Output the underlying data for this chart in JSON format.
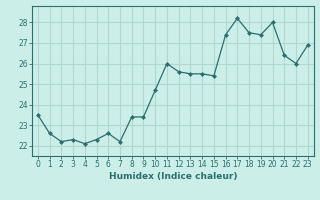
{
  "x": [
    0,
    1,
    2,
    3,
    4,
    5,
    6,
    7,
    8,
    9,
    10,
    11,
    12,
    13,
    14,
    15,
    16,
    17,
    18,
    19,
    20,
    21,
    22,
    23
  ],
  "y": [
    23.5,
    22.6,
    22.2,
    22.3,
    22.1,
    22.3,
    22.6,
    22.2,
    23.4,
    23.4,
    24.7,
    26.0,
    25.6,
    25.5,
    25.5,
    25.4,
    27.4,
    28.2,
    27.5,
    27.4,
    28.0,
    26.4,
    26.0,
    26.9
  ],
  "line_color": "#2d6e6e",
  "marker": "D",
  "marker_size": 2.0,
  "bg_color": "#cceee8",
  "grid_color": "#b0d8d0",
  "tick_color": "#2d6e6e",
  "xlabel": "Humidex (Indice chaleur)",
  "ylim": [
    21.5,
    28.8
  ],
  "xlim": [
    -0.5,
    23.5
  ],
  "yticks": [
    22,
    23,
    24,
    25,
    26,
    27,
    28
  ],
  "xticks": [
    0,
    1,
    2,
    3,
    4,
    5,
    6,
    7,
    8,
    9,
    10,
    11,
    12,
    13,
    14,
    15,
    16,
    17,
    18,
    19,
    20,
    21,
    22,
    23
  ],
  "label_fontsize": 6.5,
  "tick_fontsize": 5.5
}
